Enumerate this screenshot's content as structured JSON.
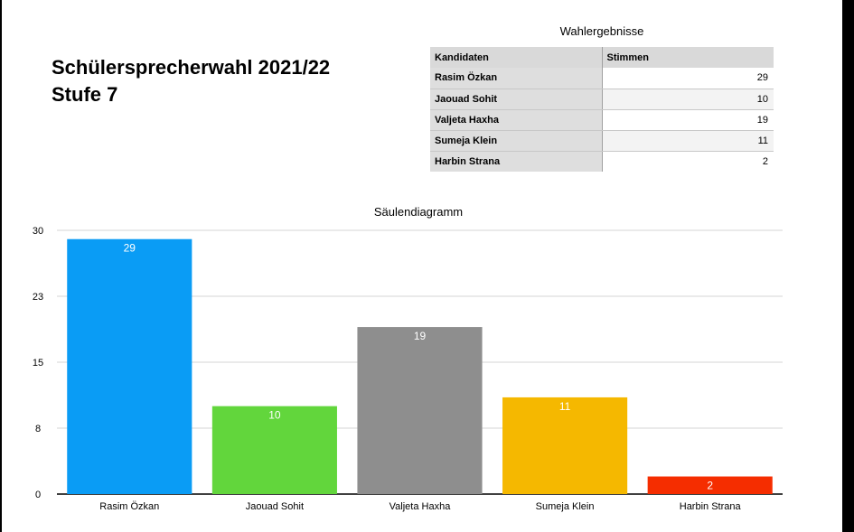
{
  "header": {
    "title_line1": "Schülersprecherwahl 2021/22",
    "title_line2": "Stufe 7"
  },
  "table": {
    "title": "Wahlergebnisse",
    "col_name": "Kandidaten",
    "col_votes": "Stimmen",
    "rows": [
      {
        "name": "Rasim Özkan",
        "votes": "29"
      },
      {
        "name": "Jaouad Sohit",
        "votes": "10"
      },
      {
        "name": "Valjeta Haxha",
        "votes": "19"
      },
      {
        "name": "Sumeja Klein",
        "votes": "11"
      },
      {
        "name": "Harbin Strana",
        "votes": "2"
      }
    ]
  },
  "chart_data": {
    "type": "bar",
    "title": "Säulendiagramm",
    "categories": [
      "Rasim Özkan",
      "Jaouad Sohit",
      "Valjeta Haxha",
      "Sumeja Klein",
      "Harbin Strana"
    ],
    "values": [
      29,
      10,
      19,
      11,
      2
    ],
    "colors": [
      "#0a9cf5",
      "#62d63c",
      "#8e8e8e",
      "#f5b800",
      "#f52d00"
    ],
    "ylim": [
      0,
      30
    ],
    "yticks": [
      "0",
      "8",
      "15",
      "23",
      "30"
    ],
    "ytick_values": [
      0,
      7.5,
      15,
      22.5,
      30
    ],
    "grid": true,
    "xlabel": "",
    "ylabel": ""
  }
}
